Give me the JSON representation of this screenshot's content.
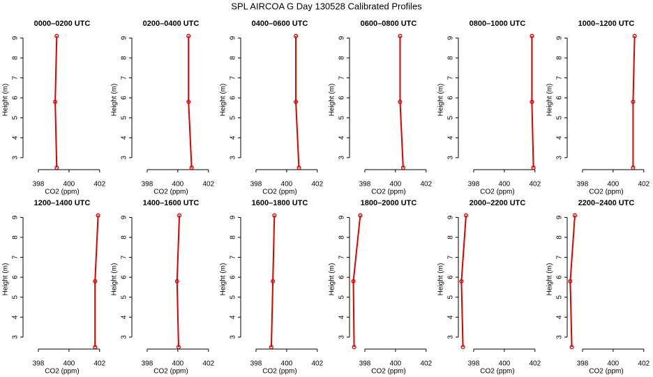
{
  "title": "SPL AIRCOA G  Day 130528  Calibrated Profiles",
  "chart_data": [
    {
      "type": "line",
      "title": "0000–0200 UTC",
      "xlabel": "CO2 (ppm)",
      "ylabel": "Height (m)",
      "color": "#dd0000",
      "x": [
        399.2,
        399.1,
        399.2
      ],
      "values": [
        2.5,
        5.8,
        9.1
      ],
      "xlim": [
        397,
        402.1
      ],
      "xticks": [
        398,
        400,
        402
      ],
      "ylim": [
        2.4,
        9.4
      ],
      "yticks": [
        3,
        4,
        5,
        6,
        7,
        8,
        9
      ]
    },
    {
      "type": "line",
      "title": "0200–0400 UTC",
      "xlabel": "CO2 (ppm)",
      "ylabel": "Height (m)",
      "color": "#dd0000",
      "x": [
        400.9,
        400.7,
        400.7
      ],
      "values": [
        2.5,
        5.8,
        9.1
      ],
      "xlim": [
        397,
        402.1
      ],
      "xticks": [
        398,
        400,
        402
      ],
      "ylim": [
        2.4,
        9.4
      ],
      "yticks": [
        3,
        4,
        5,
        6,
        7,
        8,
        9
      ]
    },
    {
      "type": "line",
      "title": "0400–0600 UTC",
      "xlabel": "CO2 (ppm)",
      "ylabel": "Height (m)",
      "color": "#dd0000",
      "x": [
        400.8,
        400.6,
        400.6
      ],
      "values": [
        2.5,
        5.8,
        9.1
      ],
      "xlim": [
        397,
        402.1
      ],
      "xticks": [
        398,
        400,
        402
      ],
      "ylim": [
        2.4,
        9.4
      ],
      "yticks": [
        3,
        4,
        5,
        6,
        7,
        8,
        9
      ]
    },
    {
      "type": "line",
      "title": "0600–0800 UTC",
      "xlabel": "CO2 (ppm)",
      "ylabel": "Height (m)",
      "color": "#dd0000",
      "x": [
        400.5,
        400.3,
        400.3
      ],
      "values": [
        2.5,
        5.8,
        9.1
      ],
      "xlim": [
        397,
        402.1
      ],
      "xticks": [
        398,
        400,
        402
      ],
      "ylim": [
        2.4,
        9.4
      ],
      "yticks": [
        3,
        4,
        5,
        6,
        7,
        8,
        9
      ]
    },
    {
      "type": "line",
      "title": "0800–1000 UTC",
      "xlabel": "CO2 (ppm)",
      "ylabel": "Height (m)",
      "color": "#dd0000",
      "x": [
        401.9,
        401.8,
        401.8
      ],
      "values": [
        2.5,
        5.8,
        9.1
      ],
      "xlim": [
        397,
        402.1
      ],
      "xticks": [
        398,
        400,
        402
      ],
      "ylim": [
        2.4,
        9.4
      ],
      "yticks": [
        3,
        4,
        5,
        6,
        7,
        8,
        9
      ]
    },
    {
      "type": "line",
      "title": "1000–1200 UTC",
      "xlabel": "CO2 (ppm)",
      "ylabel": "Height (m)",
      "color": "#dd0000",
      "x": [
        401.3,
        401.3,
        401.4
      ],
      "values": [
        2.5,
        5.8,
        9.1
      ],
      "xlim": [
        397,
        402.1
      ],
      "xticks": [
        398,
        400,
        402
      ],
      "ylim": [
        2.4,
        9.4
      ],
      "yticks": [
        3,
        4,
        5,
        6,
        7,
        8,
        9
      ]
    },
    {
      "type": "line",
      "title": "1200–1400 UTC",
      "xlabel": "CO2 (ppm)",
      "ylabel": "Height (m)",
      "color": "#dd0000",
      "x": [
        401.7,
        401.7,
        401.9
      ],
      "values": [
        2.5,
        5.8,
        9.1
      ],
      "xlim": [
        397,
        402.1
      ],
      "xticks": [
        398,
        400,
        402
      ],
      "ylim": [
        2.4,
        9.4
      ],
      "yticks": [
        3,
        4,
        5,
        6,
        7,
        8,
        9
      ]
    },
    {
      "type": "line",
      "title": "1400–1600 UTC",
      "xlabel": "CO2 (ppm)",
      "ylabel": "Height (m)",
      "color": "#dd0000",
      "x": [
        400.05,
        399.95,
        400.1
      ],
      "values": [
        2.5,
        5.8,
        9.1
      ],
      "xlim": [
        397,
        402.1
      ],
      "xticks": [
        398,
        400,
        402
      ],
      "ylim": [
        2.4,
        9.4
      ],
      "yticks": [
        3,
        4,
        5,
        6,
        7,
        8,
        9
      ]
    },
    {
      "type": "line",
      "title": "1600–1800 UTC",
      "xlabel": "CO2 (ppm)",
      "ylabel": "Height (m)",
      "color": "#dd0000",
      "x": [
        399.0,
        399.1,
        399.2
      ],
      "values": [
        2.5,
        5.8,
        9.1
      ],
      "xlim": [
        397,
        402.1
      ],
      "xticks": [
        398,
        400,
        402
      ],
      "ylim": [
        2.4,
        9.4
      ],
      "yticks": [
        3,
        4,
        5,
        6,
        7,
        8,
        9
      ]
    },
    {
      "type": "line",
      "title": "1800–2000 UTC",
      "xlabel": "CO2 (ppm)",
      "ylabel": "Height (m)",
      "color": "#dd0000",
      "x": [
        397.3,
        397.25,
        397.7
      ],
      "values": [
        2.5,
        5.8,
        9.1
      ],
      "xlim": [
        397,
        402.1
      ],
      "xticks": [
        398,
        400,
        402
      ],
      "ylim": [
        2.4,
        9.4
      ],
      "yticks": [
        3,
        4,
        5,
        6,
        7,
        8,
        9
      ]
    },
    {
      "type": "line",
      "title": "2000–2200 UTC",
      "xlabel": "CO2 (ppm)",
      "ylabel": "Height (m)",
      "color": "#dd0000",
      "x": [
        397.3,
        397.2,
        397.5
      ],
      "values": [
        2.5,
        5.8,
        9.1
      ],
      "xlim": [
        397,
        402.1
      ],
      "xticks": [
        398,
        400,
        402
      ],
      "ylim": [
        2.4,
        9.4
      ],
      "yticks": [
        3,
        4,
        5,
        6,
        7,
        8,
        9
      ]
    },
    {
      "type": "line",
      "title": "2200–2400 UTC",
      "xlabel": "CO2 (ppm)",
      "ylabel": "Height (m)",
      "color": "#dd0000",
      "x": [
        397.3,
        397.2,
        397.5
      ],
      "values": [
        2.5,
        5.8,
        9.1
      ],
      "xlim": [
        397,
        402.1
      ],
      "xticks": [
        398,
        400,
        402
      ],
      "ylim": [
        2.4,
        9.4
      ],
      "yticks": [
        3,
        4,
        5,
        6,
        7,
        8,
        9
      ]
    }
  ]
}
